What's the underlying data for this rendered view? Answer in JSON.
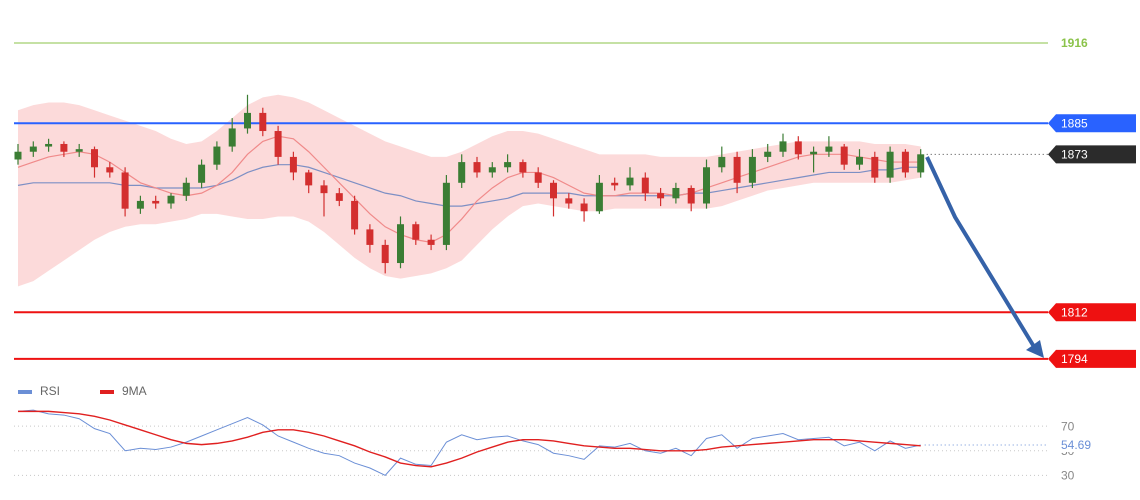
{
  "chart_data": [
    {
      "type": "candlestick",
      "ylim": [
        1792,
        1933
      ],
      "up_color": "#3b7d34",
      "down_color": "#d32f2f",
      "open": [
        1871,
        1874,
        1876,
        1877,
        1874,
        1875,
        1868,
        1866,
        1852,
        1855,
        1854,
        1857,
        1862,
        1869,
        1876,
        1883,
        1889,
        1882,
        1872,
        1866,
        1861,
        1858,
        1855,
        1844,
        1838,
        1831,
        1846,
        1840,
        1838,
        1862,
        1870,
        1866,
        1868,
        1870,
        1866,
        1862,
        1856,
        1854,
        1851,
        1862,
        1861,
        1864,
        1858,
        1856,
        1860,
        1854,
        1868,
        1872,
        1862,
        1872,
        1874,
        1878,
        1873,
        1874,
        1876,
        1869,
        1872,
        1864,
        1874,
        1866
      ],
      "high": [
        1877,
        1878,
        1879,
        1878,
        1877,
        1876,
        1870,
        1868,
        1857,
        1857,
        1858,
        1864,
        1871,
        1878,
        1887,
        1896,
        1891,
        1884,
        1874,
        1867,
        1863,
        1860,
        1857,
        1846,
        1840,
        1849,
        1847,
        1842,
        1865,
        1873,
        1872,
        1870,
        1873,
        1871,
        1868,
        1863,
        1858,
        1856,
        1865,
        1864,
        1868,
        1866,
        1860,
        1862,
        1861,
        1871,
        1876,
        1874,
        1875,
        1877,
        1881,
        1880,
        1876,
        1880,
        1877,
        1875,
        1874,
        1876,
        1875,
        1875
      ],
      "low": [
        1869,
        1872,
        1874,
        1872,
        1872,
        1864,
        1864,
        1849,
        1850,
        1852,
        1852,
        1855,
        1860,
        1867,
        1874,
        1881,
        1880,
        1869,
        1863,
        1858,
        1849,
        1853,
        1842,
        1835,
        1827,
        1829,
        1838,
        1836,
        1836,
        1860,
        1864,
        1864,
        1866,
        1864,
        1860,
        1849,
        1852,
        1847,
        1850,
        1859,
        1859,
        1855,
        1853,
        1854,
        1851,
        1852,
        1866,
        1858,
        1860,
        1870,
        1872,
        1871,
        1866,
        1872,
        1867,
        1867,
        1862,
        1862,
        1864,
        1864
      ],
      "close": [
        1874,
        1876,
        1877,
        1874,
        1875,
        1868,
        1866,
        1852,
        1855,
        1854,
        1857,
        1862,
        1869,
        1876,
        1883,
        1889,
        1882,
        1872,
        1866,
        1861,
        1858,
        1855,
        1844,
        1838,
        1831,
        1846,
        1840,
        1838,
        1862,
        1870,
        1866,
        1868,
        1870,
        1866,
        1862,
        1856,
        1854,
        1851,
        1862,
        1861,
        1864,
        1858,
        1856,
        1860,
        1854,
        1868,
        1872,
        1862,
        1872,
        1874,
        1878,
        1873,
        1874,
        1876,
        1869,
        1872,
        1864,
        1874,
        1866,
        1873
      ],
      "band_color": "#fbd3d3",
      "band_upper": [
        1890,
        1892,
        1893,
        1893,
        1892,
        1890,
        1888,
        1886,
        1884,
        1882,
        1879,
        1877,
        1878,
        1882,
        1887,
        1892,
        1895,
        1896,
        1895,
        1893,
        1890,
        1887,
        1884,
        1881,
        1878,
        1876,
        1874,
        1872,
        1872,
        1874,
        1877,
        1880,
        1882,
        1882,
        1881,
        1879,
        1877,
        1875,
        1873,
        1873,
        1873,
        1873,
        1872,
        1872,
        1872,
        1872,
        1873,
        1874,
        1875,
        1876,
        1877,
        1878,
        1878,
        1878,
        1878,
        1878,
        1877,
        1877,
        1877,
        1876
      ],
      "band_lower": [
        1822,
        1824,
        1828,
        1832,
        1836,
        1840,
        1843,
        1845,
        1846,
        1846,
        1847,
        1848,
        1850,
        1850,
        1849,
        1848,
        1848,
        1849,
        1849,
        1847,
        1843,
        1838,
        1833,
        1829,
        1826,
        1825,
        1826,
        1827,
        1829,
        1832,
        1838,
        1844,
        1849,
        1853,
        1854,
        1853,
        1852,
        1851,
        1851,
        1852,
        1852,
        1852,
        1852,
        1852,
        1852,
        1852,
        1853,
        1855,
        1857,
        1859,
        1860,
        1861,
        1862,
        1862,
        1862,
        1862,
        1862,
        1862,
        1863,
        1864
      ],
      "lines": [
        {
          "color": "#7d8fc4",
          "values": [
            1861,
            1862,
            1862,
            1862,
            1862,
            1862,
            1862,
            1861,
            1861,
            1860,
            1860,
            1860,
            1860,
            1861,
            1863,
            1866,
            1868,
            1869,
            1869,
            1868,
            1866,
            1864,
            1862,
            1860,
            1858,
            1857,
            1855,
            1854,
            1853,
            1853,
            1854,
            1855,
            1856,
            1858,
            1858,
            1858,
            1858,
            1857,
            1857,
            1857,
            1857,
            1857,
            1857,
            1857,
            1858,
            1858,
            1859,
            1860,
            1861,
            1862,
            1863,
            1864,
            1865,
            1866,
            1866,
            1866,
            1867,
            1867,
            1868,
            1868
          ]
        },
        {
          "color": "#f08a8a",
          "values": [
            1868,
            1870,
            1872,
            1873,
            1874,
            1873,
            1870,
            1866,
            1862,
            1860,
            1858,
            1857,
            1858,
            1861,
            1866,
            1873,
            1878,
            1880,
            1879,
            1874,
            1868,
            1862,
            1856,
            1850,
            1845,
            1842,
            1840,
            1839,
            1842,
            1848,
            1855,
            1860,
            1864,
            1866,
            1866,
            1864,
            1861,
            1858,
            1857,
            1857,
            1858,
            1858,
            1858,
            1857,
            1858,
            1860,
            1862,
            1864,
            1866,
            1868,
            1870,
            1872,
            1873,
            1873,
            1873,
            1872,
            1871,
            1870,
            1870,
            1870
          ]
        }
      ],
      "levels": [
        {
          "value": 1916,
          "color": "#8bc34a",
          "boxed": false,
          "dotted": false
        },
        {
          "value": 1885,
          "color": "#2962ff",
          "boxed": true,
          "dotted": false
        },
        {
          "value": 1873,
          "color": "#2b2b2b",
          "boxed": true,
          "dotted": true
        },
        {
          "value": 1812,
          "color": "#ee1111",
          "boxed": true,
          "dotted": false
        },
        {
          "value": 1794,
          "color": "#ee1111",
          "boxed": true,
          "dotted": false
        }
      ]
    },
    {
      "type": "line",
      "ylim": [
        10,
        91
      ],
      "yticks": [
        30,
        50,
        70
      ],
      "series": [
        {
          "name": "RSI",
          "color": "#6b8fd6",
          "values": [
            82,
            83,
            80,
            79,
            76,
            68,
            64,
            50,
            52,
            51,
            53,
            57,
            62,
            67,
            72,
            77,
            71,
            62,
            57,
            52,
            48,
            46,
            40,
            36,
            30,
            44,
            39,
            38,
            57,
            63,
            59,
            61,
            62,
            58,
            55,
            48,
            46,
            43,
            54,
            53,
            56,
            50,
            48,
            52,
            46,
            60,
            63,
            52,
            60,
            62,
            64,
            59,
            60,
            61,
            54,
            57,
            50,
            58,
            52,
            54.69
          ]
        },
        {
          "name": "9MA",
          "color": "#e02020",
          "values": [
            82,
            82,
            82,
            81,
            80,
            78,
            75,
            71,
            67,
            63,
            59,
            56,
            55,
            56,
            58,
            61,
            65,
            67,
            67,
            65,
            62,
            58,
            54,
            49,
            45,
            40,
            38,
            37,
            40,
            44,
            49,
            53,
            57,
            59,
            59,
            58,
            56,
            54,
            53,
            52,
            52,
            51,
            50,
            50,
            50,
            51,
            53,
            54,
            55,
            56,
            57,
            58,
            59,
            59,
            59,
            58,
            57,
            56,
            55,
            54
          ]
        }
      ]
    }
  ]
}
